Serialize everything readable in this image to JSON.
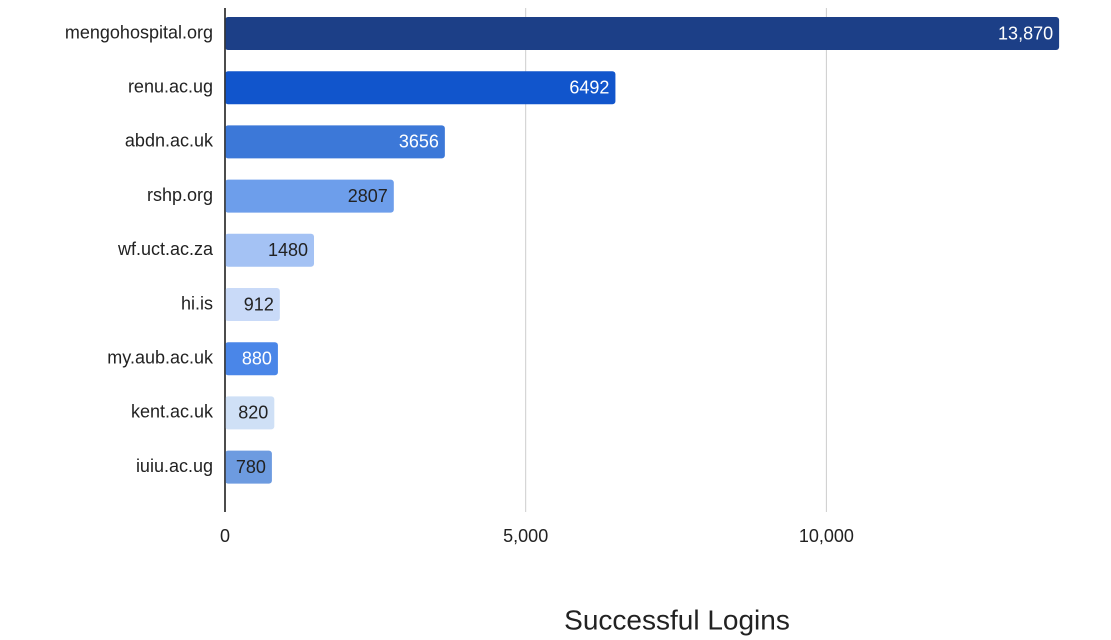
{
  "chart_data": {
    "type": "bar",
    "orientation": "horizontal",
    "x_label": "Successful Logins",
    "categories": [
      "mengohospital.org",
      "renu.ac.ug",
      "abdn.ac.uk",
      "rshp.org",
      "wf.uct.ac.za",
      "hi.is",
      "my.aub.ac.uk",
      "kent.ac.uk",
      "iuiu.ac.ug"
    ],
    "values": [
      13870,
      6492,
      3656,
      2807,
      1480,
      912,
      880,
      820,
      780
    ],
    "value_labels": [
      "13,870",
      "6492",
      "3656",
      "2807",
      "1480",
      "912",
      "880",
      "820",
      "780"
    ],
    "colors": [
      "#1c3f87",
      "#1155cc",
      "#3c78d8",
      "#6d9eeb",
      "#a4c2f4",
      "#c9daf8",
      "#4a86e8",
      "#cfe0f6",
      "#6d9be0"
    ],
    "xlim": [
      0,
      14500
    ],
    "xticks": [
      0,
      {
        "value": 5000,
        "label": "5,000"
      },
      {
        "value": 10000,
        "label": "10,000"
      }
    ],
    "grid": true
  }
}
